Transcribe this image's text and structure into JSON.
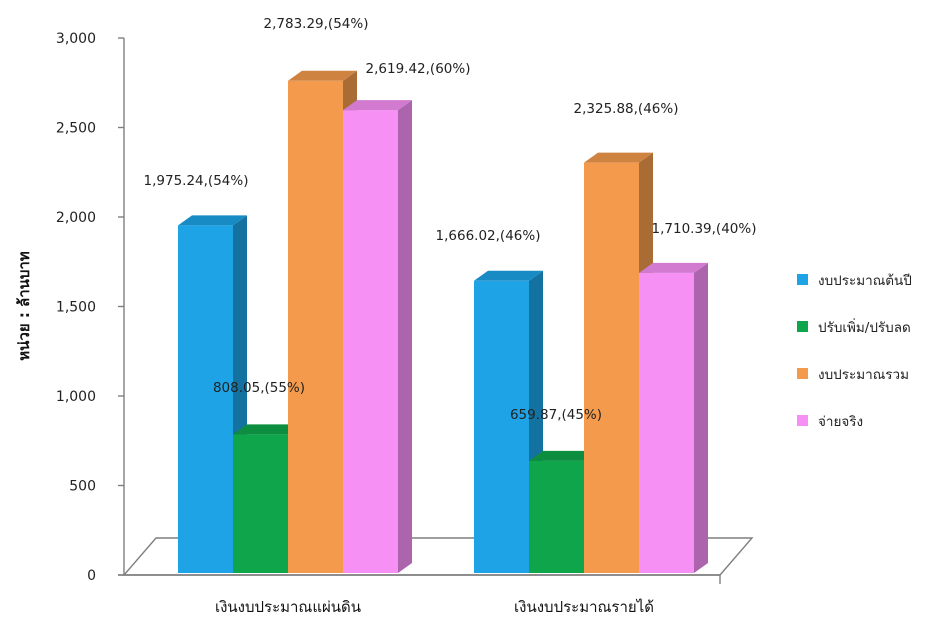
{
  "chart_data": {
    "type": "bar",
    "categories": [
      "เงินงบประมาณแผ่นดิน",
      "เงินงบประมาณรายได้"
    ],
    "series": [
      {
        "name": "งบประมาณต้นปี",
        "color": "#1DA3E6",
        "values": [
          1975.24,
          1666.02
        ],
        "labels": [
          "1,975.24,(54%)",
          "1,666.02,(46%)"
        ]
      },
      {
        "name": "ปรับเพิ่ม/ปรับลด",
        "color": "#0FA64B",
        "values": [
          808.05,
          659.87
        ],
        "labels": [
          "808.05,(55%)",
          "659.87,(45%)"
        ]
      },
      {
        "name": "งบประมาณรวม",
        "color": "#F39A4C",
        "values": [
          2783.29,
          2325.88
        ],
        "labels": [
          "2,783.29,(54%)",
          "2,325.88,(46%)"
        ]
      },
      {
        "name": "จ่ายจริง",
        "color": "#F690F5",
        "values": [
          2619.42,
          1710.39
        ],
        "labels": [
          "2,619.42,(60%)",
          "1,710.39,(40%)"
        ]
      }
    ],
    "ylabel": "หน่วย : ล้านบาท",
    "ylim": [
      0,
      3000
    ],
    "yticks": [
      0,
      500,
      1000,
      1500,
      2000,
      2500,
      3000
    ],
    "ytick_labels": [
      "0",
      "500",
      "1,000",
      "1,500",
      "2,000",
      "2,500",
      "3,000"
    ],
    "legend_position": "right",
    "grid": false,
    "style": "3d-column"
  }
}
